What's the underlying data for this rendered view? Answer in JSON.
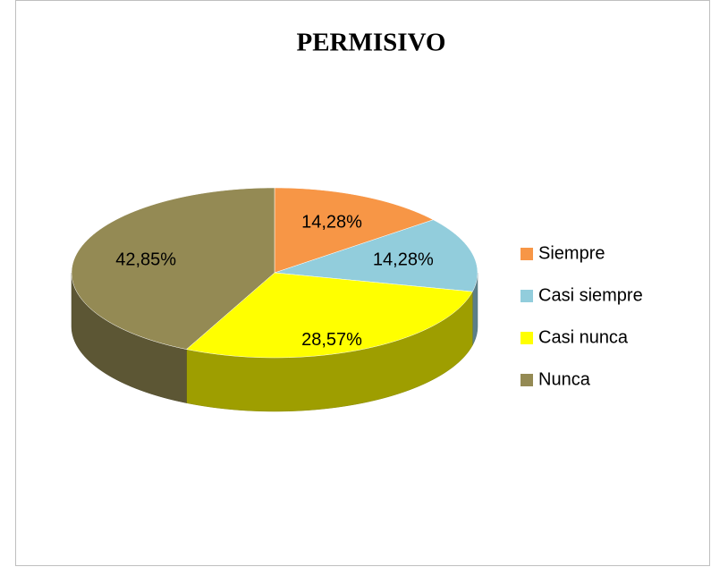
{
  "chart_data": {
    "type": "pie",
    "title": "PERMISIVO",
    "categories": [
      "Siempre",
      "Casi siempre",
      "Casi nunca",
      "Nunca"
    ],
    "values": [
      14.28,
      14.28,
      28.57,
      42.85
    ],
    "value_labels": [
      "14,28%",
      "14,28%",
      "28,57%",
      "42,85%"
    ],
    "colors": [
      "#f79646",
      "#92cddc",
      "#ffff00",
      "#948a54"
    ],
    "legend": "right"
  }
}
